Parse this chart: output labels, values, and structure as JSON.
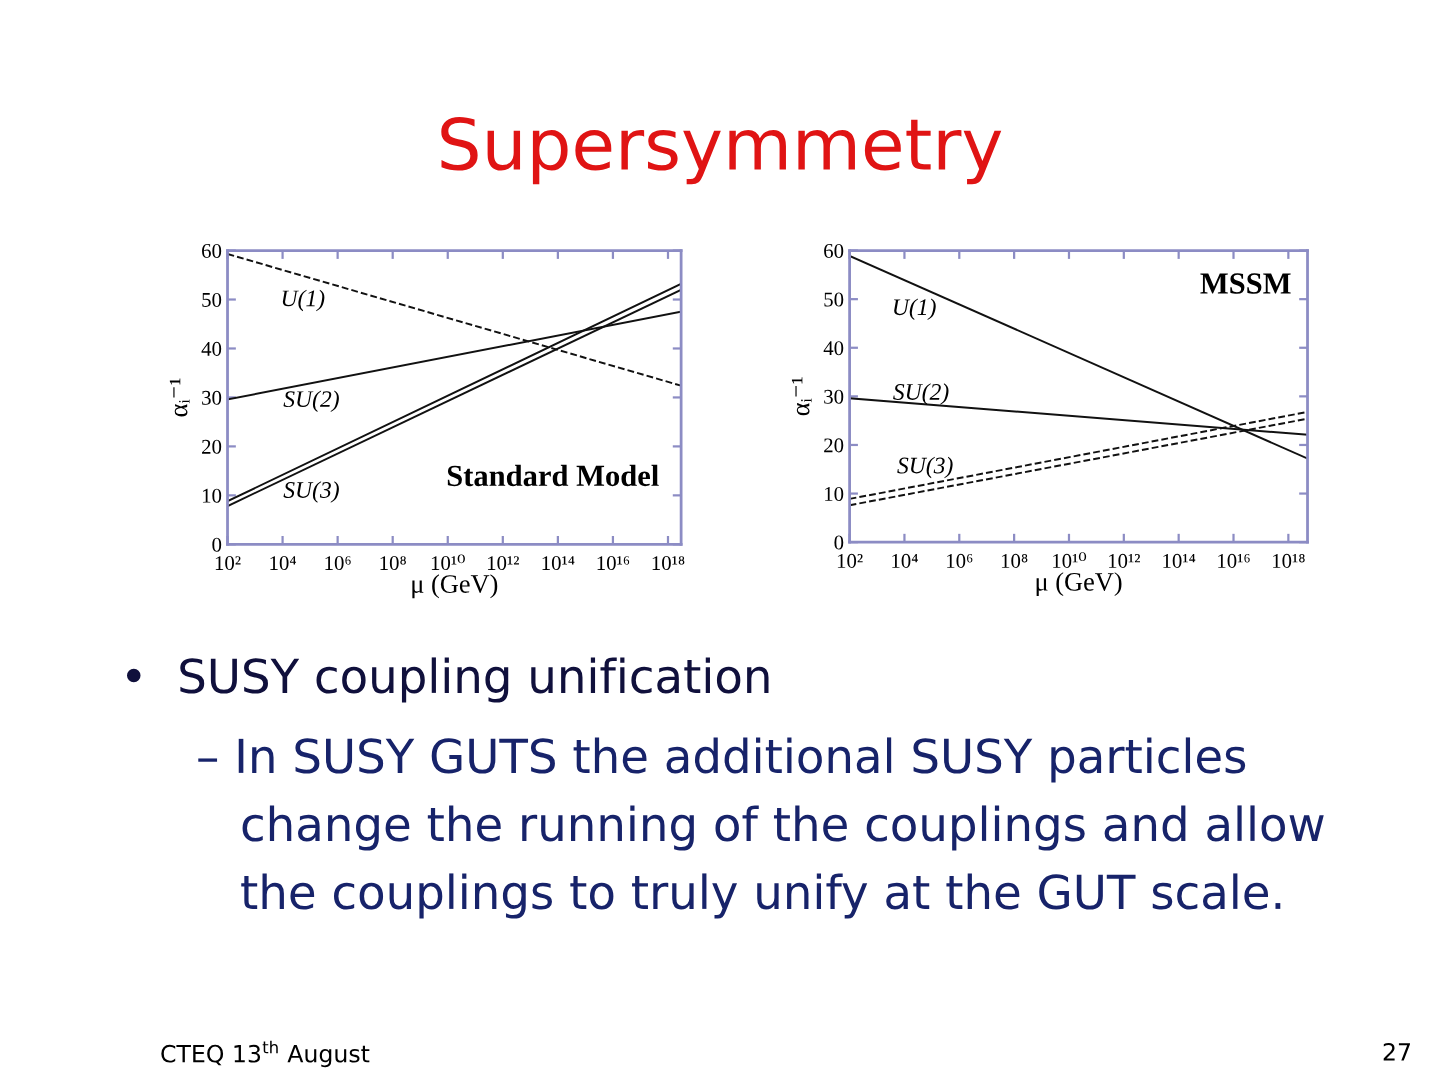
{
  "chart_data": [
    {
      "type": "other",
      "title": "Supersymmetry"
    },
    {
      "type": "line",
      "xlabel": "μ (GeV)",
      "ylabel": "αᵢ⁻¹",
      "log": "x",
      "x": [
        100,
        3e+18
      ],
      "xlim": [
        100,
        3e+18
      ],
      "xticks": [
        {
          "value": 100.0,
          "label": "10²"
        },
        {
          "value": 10000.0,
          "label": "10⁴"
        },
        {
          "value": 1000000.0,
          "label": "10⁶"
        },
        {
          "value": 100000000.0,
          "label": "10⁸"
        },
        {
          "value": 10000000000.0,
          "label": "10¹⁰"
        },
        {
          "value": 1000000000000.0,
          "label": "10¹²"
        },
        {
          "value": 100000000000000.0,
          "label": "10¹⁴"
        },
        {
          "value": 1e+16,
          "label": "10¹⁶"
        },
        {
          "value": 1e+18,
          "label": "10¹⁸"
        }
      ],
      "ylim": [
        0,
        60
      ],
      "yticks": [
        0,
        10,
        20,
        30,
        40,
        50,
        60
      ],
      "annotations": [
        "Standard Model"
      ],
      "series": [
        {
          "name": "U(1)",
          "color": "#111111",
          "line_style": "dashed",
          "values": [
            59.3,
            32.4
          ]
        },
        {
          "name": "SU(2)",
          "color": "#111111",
          "values": [
            29.6,
            47.5
          ]
        },
        {
          "name": "SU(3)",
          "color": "#111111",
          "values": [
            8.8,
            53.2
          ]
        },
        {
          "color": "#111111",
          "values": [
            7.8,
            52.0
          ]
        }
      ]
    },
    {
      "type": "line",
      "xlabel": "μ (GeV)",
      "ylabel": "αᵢ⁻¹",
      "log": "x",
      "x": [
        100,
        5e+18
      ],
      "xlim": [
        100,
        5e+18
      ],
      "xticks": [
        {
          "value": 100.0,
          "label": "10²"
        },
        {
          "value": 10000.0,
          "label": "10⁴"
        },
        {
          "value": 1000000.0,
          "label": "10⁶"
        },
        {
          "value": 100000000.0,
          "label": "10⁸"
        },
        {
          "value": 10000000000.0,
          "label": "10¹⁰"
        },
        {
          "value": 1000000000000.0,
          "label": "10¹²"
        },
        {
          "value": 100000000000000.0,
          "label": "10¹⁴"
        },
        {
          "value": 1e+16,
          "label": "10¹⁶"
        },
        {
          "value": 1e+18,
          "label": "10¹⁸"
        }
      ],
      "ylim": [
        0,
        60
      ],
      "yticks": [
        0,
        10,
        20,
        30,
        40,
        50,
        60
      ],
      "annotations": [
        "MSSM"
      ],
      "series": [
        {
          "name": "U(1)",
          "color": "#111111",
          "values": [
            58.9,
            17.2
          ]
        },
        {
          "name": "SU(2)",
          "color": "#111111",
          "values": [
            29.6,
            22.1
          ]
        },
        {
          "name": "SU(3)",
          "color": "#111111",
          "line_style": "dashed",
          "values": [
            8.9,
            26.8
          ]
        },
        {
          "color": "#111111",
          "line_style": "dashed",
          "values": [
            7.6,
            25.4
          ]
        }
      ]
    },
    {
      "type": "other",
      "annotations": [
        "•  SUSY coupling unification",
        "– In SUSY GUTS the additional SUSY particles",
        "change the running of the couplings and allow",
        "the couplings to truly unify at the GUT scale.",
        "CTEQ 13$^{th}$ August",
        "27"
      ]
    }
  ]
}
